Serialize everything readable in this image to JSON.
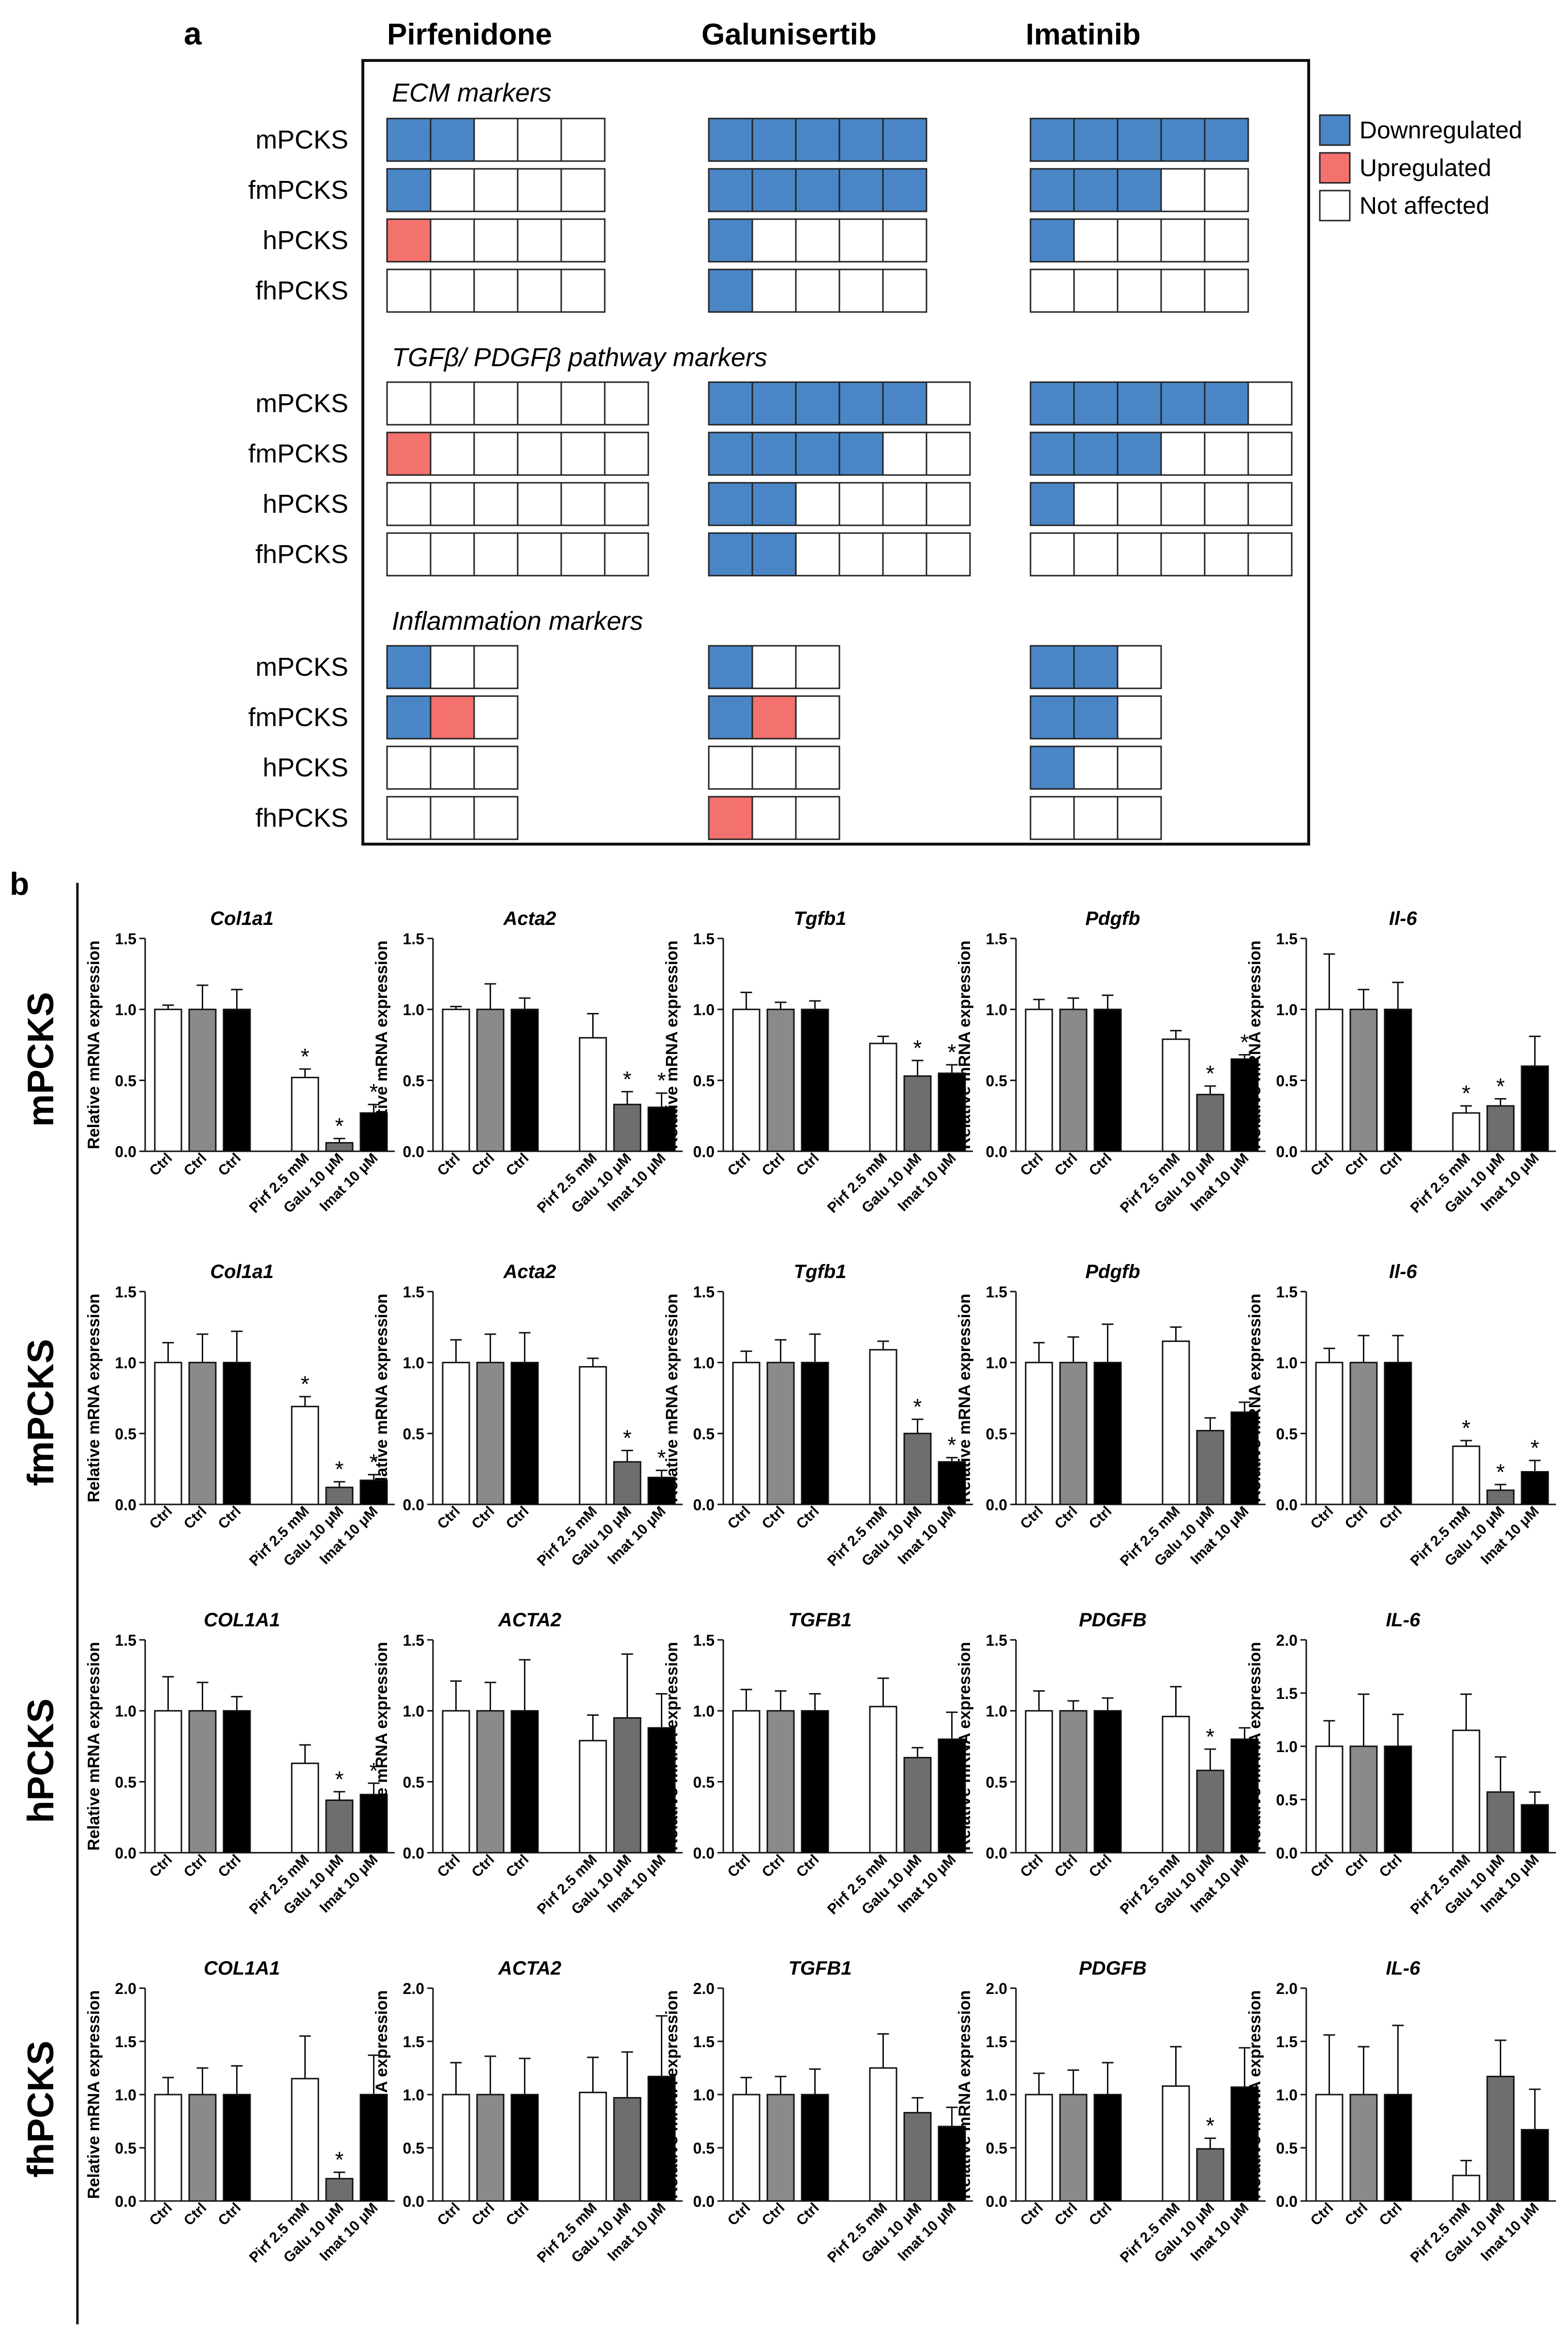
{
  "colors": {
    "down": "#4a86c6",
    "up": "#f4726e",
    "none": "#ffffff",
    "cell_border": "#222222",
    "bar_pirf": "#ffffff",
    "bar_galu": "#6e6e6e",
    "bar_imat": "#000000",
    "bar_ctrl": [
      "#ffffff",
      "#8a8a8a",
      "#000000"
    ]
  },
  "panel_a": {
    "label": "a",
    "drug_headers": [
      "Pirfenidone",
      "Galunisertib",
      "Imatinib"
    ],
    "legend": [
      {
        "key": "down",
        "label": "Downregulated"
      },
      {
        "key": "up",
        "label": "Upregulated"
      },
      {
        "key": "none",
        "label": "Not affected"
      }
    ],
    "groups": [
      {
        "title": "ECM markers",
        "rows": [
          "mPCKS",
          "fmPCKS",
          "hPCKS",
          "fhPCKS"
        ],
        "grids": [
          [
            [
              "d",
              "d",
              "n",
              "n",
              "n"
            ],
            [
              "d",
              "n",
              "n",
              "n",
              "n"
            ],
            [
              "u",
              "n",
              "n",
              "n",
              "n"
            ],
            [
              "n",
              "n",
              "n",
              "n",
              "n"
            ]
          ],
          [
            [
              "d",
              "d",
              "d",
              "d",
              "d"
            ],
            [
              "d",
              "d",
              "d",
              "d",
              "d"
            ],
            [
              "d",
              "n",
              "n",
              "n",
              "n"
            ],
            [
              "d",
              "n",
              "n",
              "n",
              "n"
            ]
          ],
          [
            [
              "d",
              "d",
              "d",
              "d",
              "d"
            ],
            [
              "d",
              "d",
              "d",
              "n",
              "n"
            ],
            [
              "d",
              "n",
              "n",
              "n",
              "n"
            ],
            [
              "n",
              "n",
              "n",
              "n",
              "n"
            ]
          ]
        ]
      },
      {
        "title": "TGFβ/ PDGFβ pathway markers",
        "rows": [
          "mPCKS",
          "fmPCKS",
          "hPCKS",
          "fhPCKS"
        ],
        "grids": [
          [
            [
              "n",
              "n",
              "n",
              "n",
              "n",
              "n"
            ],
            [
              "u",
              "n",
              "n",
              "n",
              "n",
              "n"
            ],
            [
              "n",
              "n",
              "n",
              "n",
              "n",
              "n"
            ],
            [
              "n",
              "n",
              "n",
              "n",
              "n",
              "n"
            ]
          ],
          [
            [
              "d",
              "d",
              "d",
              "d",
              "d",
              "n"
            ],
            [
              "d",
              "d",
              "d",
              "d",
              "n",
              "n"
            ],
            [
              "d",
              "d",
              "n",
              "n",
              "n",
              "n"
            ],
            [
              "d",
              "d",
              "n",
              "n",
              "n",
              "n"
            ]
          ],
          [
            [
              "d",
              "d",
              "d",
              "d",
              "d",
              "n"
            ],
            [
              "d",
              "d",
              "d",
              "n",
              "n",
              "n"
            ],
            [
              "d",
              "n",
              "n",
              "n",
              "n",
              "n"
            ],
            [
              "n",
              "n",
              "n",
              "n",
              "n",
              "n"
            ]
          ]
        ]
      },
      {
        "title": "Inflammation markers",
        "rows": [
          "mPCKS",
          "fmPCKS",
          "hPCKS",
          "fhPCKS"
        ],
        "grids": [
          [
            [
              "d",
              "n",
              "n"
            ],
            [
              "d",
              "u",
              "n"
            ],
            [
              "n",
              "n",
              "n"
            ],
            [
              "n",
              "n",
              "n"
            ]
          ],
          [
            [
              "d",
              "n",
              "n"
            ],
            [
              "d",
              "u",
              "n"
            ],
            [
              "n",
              "n",
              "n"
            ],
            [
              "u",
              "n",
              "n"
            ]
          ],
          [
            [
              "d",
              "d",
              "n"
            ],
            [
              "d",
              "d",
              "n"
            ],
            [
              "d",
              "n",
              "n"
            ],
            [
              "n",
              "n",
              "n"
            ]
          ]
        ]
      }
    ]
  },
  "panel_b": {
    "label": "b",
    "ylabel": "Relative mRNA expression",
    "categories": [
      "Ctrl",
      "Ctrl",
      "Ctrl",
      "Pirf 2.5 mM",
      "Galu 10 μM",
      "Imat 10 μM"
    ],
    "rows": [
      "mPCKS",
      "fmPCKS",
      "hPCKS",
      "fhPCKS"
    ]
  },
  "chart_data": [
    {
      "type": "bar",
      "row": "mPCKS",
      "title": "Col1a1",
      "ylim": [
        0,
        1.5
      ],
      "yticks": [
        "0.0",
        "0.5",
        "1.0",
        "1.5"
      ],
      "values": [
        1.0,
        1.0,
        1.0,
        0.52,
        0.06,
        0.27
      ],
      "errors": [
        0.03,
        0.17,
        0.14,
        0.06,
        0.03,
        0.06
      ],
      "sig": [
        false,
        false,
        false,
        true,
        true,
        true
      ]
    },
    {
      "type": "bar",
      "row": "mPCKS",
      "title": "Acta2",
      "ylim": [
        0,
        1.5
      ],
      "yticks": [
        "0.0",
        "0.5",
        "1.0",
        "1.5"
      ],
      "values": [
        1.0,
        1.0,
        1.0,
        0.8,
        0.33,
        0.31
      ],
      "errors": [
        0.02,
        0.18,
        0.08,
        0.17,
        0.09,
        0.1
      ],
      "sig": [
        false,
        false,
        false,
        false,
        true,
        true
      ]
    },
    {
      "type": "bar",
      "row": "mPCKS",
      "title": "Tgfb1",
      "ylim": [
        0,
        1.5
      ],
      "yticks": [
        "0.0",
        "0.5",
        "1.0",
        "1.5"
      ],
      "values": [
        1.0,
        1.0,
        1.0,
        0.76,
        0.53,
        0.55
      ],
      "errors": [
        0.12,
        0.05,
        0.06,
        0.05,
        0.11,
        0.06
      ],
      "sig": [
        false,
        false,
        false,
        false,
        true,
        true
      ]
    },
    {
      "type": "bar",
      "row": "mPCKS",
      "title": "Pdgfb",
      "ylim": [
        0,
        1.5
      ],
      "yticks": [
        "0.0",
        "0.5",
        "1.0",
        "1.5"
      ],
      "values": [
        1.0,
        1.0,
        1.0,
        0.79,
        0.4,
        0.65
      ],
      "errors": [
        0.07,
        0.08,
        0.1,
        0.06,
        0.06,
        0.03
      ],
      "sig": [
        false,
        false,
        false,
        false,
        true,
        true
      ]
    },
    {
      "type": "bar",
      "row": "mPCKS",
      "title": "Il-6",
      "ylim": [
        0,
        1.5
      ],
      "yticks": [
        "0.0",
        "0.5",
        "1.0",
        "1.5"
      ],
      "values": [
        1.0,
        1.0,
        1.0,
        0.27,
        0.32,
        0.6
      ],
      "errors": [
        0.39,
        0.14,
        0.19,
        0.05,
        0.05,
        0.21
      ],
      "sig": [
        false,
        false,
        false,
        true,
        true,
        false
      ]
    },
    {
      "type": "bar",
      "row": "fmPCKS",
      "title": "Col1a1",
      "ylim": [
        0,
        1.5
      ],
      "yticks": [
        "0.0",
        "0.5",
        "1.0",
        "1.5"
      ],
      "values": [
        1.0,
        1.0,
        1.0,
        0.69,
        0.12,
        0.17
      ],
      "errors": [
        0.14,
        0.2,
        0.22,
        0.07,
        0.04,
        0.04
      ],
      "sig": [
        false,
        false,
        false,
        true,
        true,
        true
      ]
    },
    {
      "type": "bar",
      "row": "fmPCKS",
      "title": "Acta2",
      "ylim": [
        0,
        1.5
      ],
      "yticks": [
        "0.0",
        "0.5",
        "1.0",
        "1.5"
      ],
      "values": [
        1.0,
        1.0,
        1.0,
        0.97,
        0.3,
        0.19
      ],
      "errors": [
        0.16,
        0.2,
        0.21,
        0.06,
        0.08,
        0.05
      ],
      "sig": [
        false,
        false,
        false,
        false,
        true,
        true
      ]
    },
    {
      "type": "bar",
      "row": "fmPCKS",
      "title": "Tgfb1",
      "ylim": [
        0,
        1.5
      ],
      "yticks": [
        "0.0",
        "0.5",
        "1.0",
        "1.5"
      ],
      "values": [
        1.0,
        1.0,
        1.0,
        1.09,
        0.5,
        0.3
      ],
      "errors": [
        0.08,
        0.16,
        0.2,
        0.06,
        0.1,
        0.03
      ],
      "sig": [
        false,
        false,
        false,
        false,
        true,
        true
      ]
    },
    {
      "type": "bar",
      "row": "fmPCKS",
      "title": "Pdgfb",
      "ylim": [
        0,
        1.5
      ],
      "yticks": [
        "0.0",
        "0.5",
        "1.0",
        "1.5"
      ],
      "values": [
        1.0,
        1.0,
        1.0,
        1.15,
        0.52,
        0.65
      ],
      "errors": [
        0.14,
        0.18,
        0.27,
        0.1,
        0.09,
        0.07
      ],
      "sig": [
        false,
        false,
        false,
        false,
        false,
        false
      ]
    },
    {
      "type": "bar",
      "row": "fmPCKS",
      "title": "Il-6",
      "ylim": [
        0,
        1.5
      ],
      "yticks": [
        "0.0",
        "0.5",
        "1.0",
        "1.5"
      ],
      "values": [
        1.0,
        1.0,
        1.0,
        0.41,
        0.1,
        0.23
      ],
      "errors": [
        0.1,
        0.19,
        0.19,
        0.04,
        0.04,
        0.08
      ],
      "sig": [
        false,
        false,
        false,
        true,
        true,
        true
      ]
    },
    {
      "type": "bar",
      "row": "hPCKS",
      "title": "COL1A1",
      "ylim": [
        0,
        1.5
      ],
      "yticks": [
        "0.0",
        "0.5",
        "1.0",
        "1.5"
      ],
      "values": [
        1.0,
        1.0,
        1.0,
        0.63,
        0.37,
        0.41
      ],
      "errors": [
        0.24,
        0.2,
        0.1,
        0.13,
        0.06,
        0.08
      ],
      "sig": [
        false,
        false,
        false,
        false,
        true,
        true
      ]
    },
    {
      "type": "bar",
      "row": "hPCKS",
      "title": "ACTA2",
      "ylim": [
        0,
        1.5
      ],
      "yticks": [
        "0.0",
        "0.5",
        "1.0",
        "1.5"
      ],
      "values": [
        1.0,
        1.0,
        1.0,
        0.79,
        0.95,
        0.88
      ],
      "errors": [
        0.21,
        0.2,
        0.36,
        0.18,
        0.45,
        0.24
      ],
      "sig": [
        false,
        false,
        false,
        false,
        false,
        false
      ]
    },
    {
      "type": "bar",
      "row": "hPCKS",
      "title": "TGFB1",
      "ylim": [
        0,
        1.5
      ],
      "yticks": [
        "0.0",
        "0.5",
        "1.0",
        "1.5"
      ],
      "values": [
        1.0,
        1.0,
        1.0,
        1.03,
        0.67,
        0.8
      ],
      "errors": [
        0.15,
        0.14,
        0.12,
        0.2,
        0.07,
        0.19
      ],
      "sig": [
        false,
        false,
        false,
        false,
        false,
        false
      ]
    },
    {
      "type": "bar",
      "row": "hPCKS",
      "title": "PDGFB",
      "ylim": [
        0,
        1.5
      ],
      "yticks": [
        "0.0",
        "0.5",
        "1.0",
        "1.5"
      ],
      "values": [
        1.0,
        1.0,
        1.0,
        0.96,
        0.58,
        0.8
      ],
      "errors": [
        0.14,
        0.07,
        0.09,
        0.21,
        0.15,
        0.08
      ],
      "sig": [
        false,
        false,
        false,
        false,
        true,
        false
      ]
    },
    {
      "type": "bar",
      "row": "hPCKS",
      "title": "IL-6",
      "ylim": [
        0,
        2.0
      ],
      "yticks": [
        "0.0",
        "0.5",
        "1.0",
        "1.5",
        "2.0"
      ],
      "values": [
        1.0,
        1.0,
        1.0,
        1.15,
        0.57,
        0.45
      ],
      "errors": [
        0.24,
        0.49,
        0.3,
        0.34,
        0.33,
        0.12
      ],
      "sig": [
        false,
        false,
        false,
        false,
        false,
        false
      ]
    },
    {
      "type": "bar",
      "row": "fhPCKS",
      "title": "COL1A1",
      "ylim": [
        0,
        2.0
      ],
      "yticks": [
        "0.0",
        "0.5",
        "1.0",
        "1.5",
        "2.0"
      ],
      "values": [
        1.0,
        1.0,
        1.0,
        1.15,
        0.21,
        1.0
      ],
      "errors": [
        0.16,
        0.25,
        0.27,
        0.4,
        0.06,
        0.37
      ],
      "sig": [
        false,
        false,
        false,
        false,
        true,
        false
      ]
    },
    {
      "type": "bar",
      "row": "fhPCKS",
      "title": "ACTA2",
      "ylim": [
        0,
        2.0
      ],
      "yticks": [
        "0.0",
        "0.5",
        "1.0",
        "1.5",
        "2.0"
      ],
      "values": [
        1.0,
        1.0,
        1.0,
        1.02,
        0.97,
        1.17
      ],
      "errors": [
        0.3,
        0.36,
        0.34,
        0.33,
        0.43,
        0.57
      ],
      "sig": [
        false,
        false,
        false,
        false,
        false,
        false
      ]
    },
    {
      "type": "bar",
      "row": "fhPCKS",
      "title": "TGFB1",
      "ylim": [
        0,
        2.0
      ],
      "yticks": [
        "0.0",
        "0.5",
        "1.0",
        "1.5",
        "2.0"
      ],
      "values": [
        1.0,
        1.0,
        1.0,
        1.25,
        0.83,
        0.7
      ],
      "errors": [
        0.16,
        0.17,
        0.24,
        0.32,
        0.14,
        0.18
      ],
      "sig": [
        false,
        false,
        false,
        false,
        false,
        false
      ]
    },
    {
      "type": "bar",
      "row": "fhPCKS",
      "title": "PDGFB",
      "ylim": [
        0,
        2.0
      ],
      "yticks": [
        "0.0",
        "0.5",
        "1.0",
        "1.5",
        "2.0"
      ],
      "values": [
        1.0,
        1.0,
        1.0,
        1.08,
        0.49,
        1.07
      ],
      "errors": [
        0.2,
        0.23,
        0.3,
        0.37,
        0.1,
        0.37
      ],
      "sig": [
        false,
        false,
        false,
        false,
        true,
        false
      ]
    },
    {
      "type": "bar",
      "row": "fhPCKS",
      "title": "IL-6",
      "ylim": [
        0,
        2.0
      ],
      "yticks": [
        "0.0",
        "0.5",
        "1.0",
        "1.5",
        "2.0"
      ],
      "values": [
        1.0,
        1.0,
        1.0,
        0.24,
        1.17,
        0.67
      ],
      "errors": [
        0.56,
        0.45,
        0.65,
        0.14,
        0.34,
        0.38
      ],
      "sig": [
        false,
        false,
        false,
        false,
        false,
        false
      ]
    }
  ]
}
